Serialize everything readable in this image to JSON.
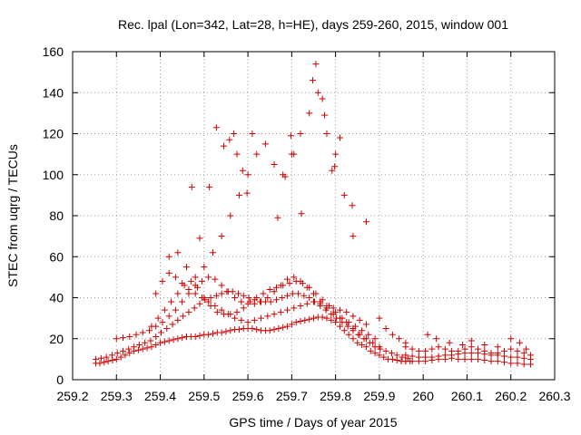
{
  "chart_data": {
    "type": "scatter",
    "title": "Rec. lpal (Lon=342, Lat=28, h=HE), days 259-260, 2015, window 001",
    "xlabel": "GPS time / Days of year 2015",
    "ylabel": "STEC from uqrg / TECUs",
    "xlim": [
      259.2,
      260.3
    ],
    "ylim": [
      0,
      160
    ],
    "xticks": [
      259.2,
      259.3,
      259.4,
      259.5,
      259.6,
      259.7,
      259.8,
      259.9,
      260,
      260.1,
      260.2,
      260.3
    ],
    "xtick_labels": [
      "259.2",
      "259.3",
      "259.4",
      "259.5",
      "259.6",
      "259.7",
      "259.8",
      "259.9",
      "260",
      "260.1",
      "260.2",
      "260.3"
    ],
    "yticks": [
      0,
      20,
      40,
      60,
      80,
      100,
      120,
      140,
      160
    ],
    "ytick_labels": [
      "0",
      "20",
      "40",
      "60",
      "80",
      "100",
      "120",
      "140",
      "160"
    ],
    "grid": true,
    "marker": "+",
    "marker_color": "#cc0000",
    "series": [
      {
        "name": "",
        "x": [
          259.253,
          259.262,
          259.272,
          259.281,
          259.291,
          259.3,
          259.31,
          259.32,
          259.33,
          259.34,
          259.35,
          259.36,
          259.37,
          259.38,
          259.39,
          259.4,
          259.41,
          259.42,
          259.43,
          259.44,
          259.45,
          259.46,
          259.47,
          259.48,
          259.49,
          259.5,
          259.51,
          259.52,
          259.53,
          259.54,
          259.55,
          259.56,
          259.57,
          259.58,
          259.59,
          259.6,
          259.61,
          259.62,
          259.63,
          259.64,
          259.65,
          259.66,
          259.67,
          259.68,
          259.69,
          259.7,
          259.71,
          259.72,
          259.73,
          259.74,
          259.75,
          259.76,
          259.77,
          259.78,
          259.79,
          259.8,
          259.81,
          259.82,
          259.83,
          259.84,
          259.85,
          259.86,
          259.87,
          259.88,
          259.89,
          259.9,
          259.91,
          259.92,
          259.93,
          259.94,
          259.95,
          259.96,
          259.97
        ],
        "y": [
          8,
          8,
          8.5,
          9,
          9.5,
          10,
          11,
          12,
          13,
          14,
          14.5,
          15,
          15.5,
          16,
          17,
          18,
          18.5,
          19,
          19.5,
          20,
          20.5,
          21,
          21,
          21,
          21.5,
          22,
          22,
          22.5,
          23,
          23,
          23.5,
          24,
          24.5,
          24.5,
          25,
          25,
          25,
          24.5,
          24,
          24,
          24,
          24.5,
          25,
          25.5,
          26,
          27,
          28,
          28.5,
          29,
          29.5,
          30,
          30.5,
          30.5,
          30,
          29,
          28,
          26,
          24,
          22,
          20,
          18,
          17,
          16,
          14,
          13,
          12,
          11,
          10,
          10,
          9.5,
          9,
          9,
          9
        ]
      },
      {
        "name": "",
        "x": [
          259.253,
          259.265,
          259.277,
          259.29,
          259.302,
          259.315,
          259.328,
          259.34,
          259.352,
          259.365,
          259.378,
          259.39,
          259.402,
          259.415,
          259.428,
          259.44,
          259.452,
          259.465,
          259.478,
          259.49,
          259.502,
          259.515,
          259.528,
          259.54,
          259.552,
          259.565,
          259.578,
          259.59,
          259.602,
          259.615,
          259.628,
          259.64,
          259.652,
          259.665,
          259.678,
          259.69,
          259.702,
          259.715,
          259.728,
          259.74,
          259.752,
          259.765,
          259.778,
          259.79,
          259.802,
          259.815,
          259.828,
          259.84,
          259.852,
          259.865,
          259.878,
          259.89,
          259.902,
          259.915,
          259.928,
          259.94,
          259.952,
          259.965
        ],
        "y": [
          10,
          10.5,
          11,
          12,
          13,
          14,
          15,
          16,
          17,
          18,
          19,
          21,
          23,
          25,
          27,
          29,
          31,
          33,
          35,
          37,
          39,
          40,
          41,
          42,
          43,
          43,
          42,
          41,
          40,
          39,
          38,
          38,
          38,
          39,
          40,
          41,
          42,
          42,
          41,
          40,
          38,
          36,
          34,
          32,
          30,
          28,
          26,
          24,
          22,
          20,
          18,
          16,
          15,
          14,
          13,
          12,
          11,
          10.5
        ]
      },
      {
        "name": "",
        "x": [
          259.3,
          259.315,
          259.33,
          259.345,
          259.36,
          259.375,
          259.39,
          259.405,
          259.42,
          259.435,
          259.45,
          259.465,
          259.48,
          259.495,
          259.51,
          259.525,
          259.54,
          259.555,
          259.57,
          259.585,
          259.6,
          259.615,
          259.63,
          259.645,
          259.66,
          259.675,
          259.69,
          259.705,
          259.72,
          259.735,
          259.75,
          259.765,
          259.78,
          259.795,
          259.81,
          259.825,
          259.84,
          259.855,
          259.87,
          259.885,
          259.9
        ],
        "y": [
          20,
          20.5,
          21,
          22,
          23,
          24,
          26,
          28,
          31,
          34,
          38,
          42,
          46,
          48,
          50,
          49,
          46,
          43,
          40,
          38,
          37,
          37,
          38,
          40,
          43,
          46,
          49,
          50,
          48,
          45,
          42,
          38,
          35,
          32,
          30,
          28,
          25,
          22,
          20,
          18,
          16
        ]
      },
      {
        "name": "",
        "x": [
          259.38,
          259.395,
          259.41,
          259.425,
          259.44,
          259.455,
          259.47,
          259.485,
          259.5,
          259.515,
          259.53,
          259.545,
          259.56,
          259.575,
          259.59,
          259.605,
          259.62,
          259.635,
          259.65,
          259.665,
          259.68,
          259.695,
          259.71,
          259.725,
          259.74,
          259.755,
          259.77,
          259.785,
          259.8,
          259.815,
          259.83,
          259.845,
          259.86,
          259.875,
          259.89
        ],
        "y": [
          26,
          30,
          34,
          38,
          42,
          46,
          48,
          45,
          40,
          36,
          33,
          32,
          32,
          33,
          35,
          38,
          40,
          42,
          44,
          45,
          46,
          47,
          48,
          47,
          45,
          42,
          39,
          36,
          33,
          30,
          28,
          26,
          24,
          22,
          20
        ]
      },
      {
        "name": "",
        "x": [
          259.39,
          259.405,
          259.42,
          259.435,
          259.45,
          259.465,
          259.48,
          259.495,
          259.51,
          259.525,
          259.54,
          259.555,
          259.57,
          259.585,
          259.6,
          259.615,
          259.63,
          259.645,
          259.66,
          259.675,
          259.69,
          259.705,
          259.72,
          259.735,
          259.75,
          259.765,
          259.78,
          259.795,
          259.81,
          259.825,
          259.84,
          259.855,
          259.87
        ],
        "y": [
          42,
          48,
          52,
          50,
          47,
          44,
          42,
          40,
          38,
          36,
          34,
          32,
          30,
          29,
          28,
          29,
          30,
          31,
          32,
          33,
          34,
          35,
          36,
          37,
          38,
          37,
          36,
          35,
          34,
          33,
          31,
          29,
          27
        ]
      },
      {
        "name": "",
        "x": [
          259.42,
          259.44,
          259.46,
          259.48,
          259.5,
          259.52,
          259.54,
          259.56,
          259.58,
          259.6,
          259.62,
          259.64,
          259.66,
          259.68,
          259.7,
          259.72,
          259.74,
          259.76,
          259.78,
          259.8,
          259.82,
          259.84
        ],
        "y": [
          60,
          62,
          55,
          50,
          55,
          62,
          70,
          80,
          90,
          100,
          110,
          115,
          105,
          100,
          110,
          120,
          130,
          140,
          120,
          110,
          90,
          70
        ]
      },
      {
        "name": "",
        "x": [
          259.472,
          259.49,
          259.512,
          259.528,
          259.545,
          259.558,
          259.568,
          259.575,
          259.588,
          259.598,
          259.61,
          259.668,
          259.685,
          259.698,
          259.705,
          259.722,
          259.748,
          259.755,
          259.77,
          259.775,
          259.792,
          259.798,
          259.81,
          259.838,
          259.87
        ],
        "y": [
          94,
          69,
          94,
          123,
          114,
          117,
          120,
          110,
          102,
          91,
          120,
          79,
          99,
          119,
          110,
          81,
          146,
          154,
          137,
          129,
          102,
          104,
          118,
          85,
          77
        ]
      },
      {
        "name": "",
        "x": [
          259.96,
          259.975,
          259.99,
          260.005,
          260.02,
          260.035,
          260.05,
          260.065,
          260.08,
          260.095,
          260.11,
          260.125,
          260.14,
          260.155,
          260.17,
          260.185,
          260.2,
          260.215,
          260.23,
          260.245
        ],
        "y": [
          9,
          9,
          9,
          9,
          9.5,
          10,
          10,
          10.5,
          10,
          10,
          10,
          10,
          9.5,
          9,
          9,
          8.5,
          8,
          8,
          7.5,
          7.5
        ]
      },
      {
        "name": "",
        "x": [
          259.96,
          259.975,
          259.99,
          260.005,
          260.02,
          260.035,
          260.05,
          260.065,
          260.08,
          260.095,
          260.11,
          260.125,
          260.14,
          260.155,
          260.17,
          260.185,
          260.2,
          260.215,
          260.23,
          260.245
        ],
        "y": [
          12,
          11.5,
          11,
          11,
          11,
          11.5,
          12,
          12,
          12.5,
          13,
          13,
          13,
          12.5,
          12,
          12,
          11.5,
          11,
          11,
          10.5,
          10
        ]
      },
      {
        "name": "",
        "x": [
          259.96,
          259.975,
          259.99,
          260.005,
          260.02,
          260.035,
          260.05,
          260.065,
          260.08,
          260.095,
          260.11,
          260.125,
          260.14,
          260.155,
          260.17,
          260.185,
          260.2,
          260.215,
          260.23,
          260.245
        ],
        "y": [
          16,
          15,
          14,
          14,
          15,
          16,
          15,
          14,
          14,
          15,
          16,
          15,
          14,
          13,
          13,
          14,
          15,
          14,
          13,
          12
        ]
      },
      {
        "name": "",
        "x": [
          259.9,
          259.915,
          259.93,
          259.945,
          259.96,
          260.01,
          260.03,
          260.06,
          260.09,
          260.11,
          260.14,
          260.17,
          260.2,
          260.22,
          260.235
        ],
        "y": [
          30,
          25,
          22,
          20,
          18,
          22,
          20,
          18,
          17,
          19,
          17,
          16,
          20,
          18,
          15
        ]
      }
    ]
  }
}
